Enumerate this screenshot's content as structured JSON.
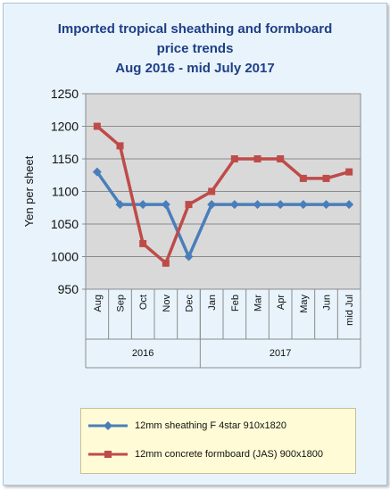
{
  "chart_data": {
    "type": "line",
    "title": [
      "Imported tropical sheathing and formboard",
      "price trends",
      "Aug 2016 - mid July 2017"
    ],
    "ylabel": "Yen per sheet",
    "ylim": [
      950,
      1250
    ],
    "yticks": [
      950,
      1000,
      1050,
      1100,
      1150,
      1200,
      1250
    ],
    "categories": [
      "Aug",
      "Sep",
      "Oct",
      "Nov",
      "Dec",
      "Jan",
      "Feb",
      "Mar",
      "Apr",
      "May",
      "Jun",
      "mid Jul"
    ],
    "groups": [
      {
        "label": "2016",
        "count": 5
      },
      {
        "label": "2017",
        "count": 7
      }
    ],
    "grid": true,
    "legend_position": "bottom",
    "series": [
      {
        "name": "12mm sheathing F 4star 910x1820",
        "color": "#4a7ebb",
        "marker": "diamond",
        "values": [
          1130,
          1080,
          1080,
          1080,
          1000,
          1080,
          1080,
          1080,
          1080,
          1080,
          1080,
          1080
        ]
      },
      {
        "name": "12mm concrete formboard (JAS) 900x1800",
        "color": "#be4b48",
        "marker": "square",
        "values": [
          1200,
          1170,
          1020,
          990,
          1080,
          1100,
          1150,
          1150,
          1150,
          1120,
          1120,
          1130
        ]
      }
    ]
  }
}
